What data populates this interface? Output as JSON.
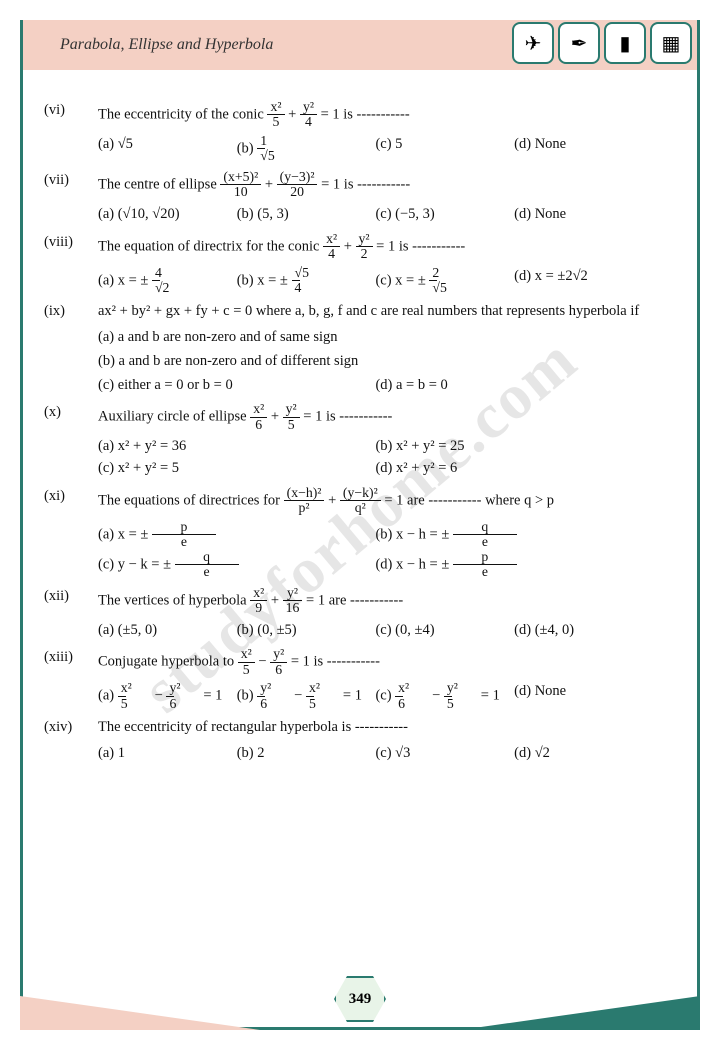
{
  "header": {
    "title": "Parabola, Ellipse and Hyperbola"
  },
  "watermark": "studyforhome.com",
  "page_number": "349",
  "colors": {
    "frame": "#2a7a6f",
    "header_bg": "#f4d0c4",
    "text": "#111111",
    "watermark": "#e6e6e6",
    "page_hex_bg": "#e8f4e8"
  },
  "icons": [
    {
      "name": "plane-icon",
      "glyph": "✈"
    },
    {
      "name": "compass-icon",
      "glyph": "⌀"
    },
    {
      "name": "ruler-icon",
      "glyph": "📏"
    },
    {
      "name": "calc-icon",
      "glyph": "🧮"
    }
  ],
  "q": {
    "vi": {
      "num": "(vi)",
      "stem_a": "The eccentricity of the conic ",
      "stem_b": " = 1 is -----------",
      "a": "(a) √5",
      "b": "(b) ",
      "c": "(c) 5",
      "d": "(d) None"
    },
    "vii": {
      "num": "(vii)",
      "stem_a": "The centre of ellipse ",
      "stem_b": " = 1 is -----------",
      "a": "(a) (√10, √20)",
      "b": "(b) (5, 3)",
      "c": "(c) (−5, 3)",
      "d": "(d) None"
    },
    "viii": {
      "num": "(viii)",
      "stem_a": "The equation of directrix for the conic ",
      "stem_b": " = 1 is -----------",
      "a": "(a)  x = ± ",
      "b": "(b) x = ± ",
      "c": "(c) x = ± ",
      "d": "(d) x = ±2√2"
    },
    "ix": {
      "num": "(ix)",
      "stem": "ax² + by² + gx + fy + c = 0 where a, b, g, f and c are real numbers that represents hyperbola if",
      "a": "(a)  a and b are non-zero and of same sign",
      "b": "(b)  a and b are non-zero and of different sign",
      "c": "(c)  either a = 0 or b = 0",
      "d": "(d) a = b = 0"
    },
    "x": {
      "num": "(x)",
      "stem_a": "Auxiliary circle of ellipse  ",
      "stem_b": " = 1 is -----------",
      "a": "(a) x² + y² = 36",
      "b": "(b) x² + y² = 25",
      "c": "(c) x² + y² = 5",
      "d": "(d) x² + y² = 6"
    },
    "xi": {
      "num": "(xi)",
      "stem_a": "The equations of directrices for  ",
      "stem_b": " = 1 are ----------- where q > p",
      "a": "(a) x = ± ",
      "b": "(b) x − h = ± ",
      "c": "(c) y − k = ± ",
      "d": "(d) x − h = ± "
    },
    "xii": {
      "num": "(xii)",
      "stem_a": "The vertices of hyperbola  ",
      "stem_b": " = 1 are -----------",
      "a": "(a) (±5, 0)",
      "b": "(b) (0, ±5)",
      "c": "(c) (0, ±4)",
      "d": "(d) (±4, 0)"
    },
    "xiii": {
      "num": "(xiii)",
      "stem_a": "Conjugate hyperbola to  ",
      "stem_b": " = 1 is -----------",
      "a": "(a) ",
      "b": "(b) ",
      "c": "(c) ",
      "d": "(d) None"
    },
    "xiv": {
      "num": "(xiv)",
      "stem": "The eccentricity of rectangular hyperbola is -----------",
      "a": "(a) 1",
      "b": "(b) 2",
      "c": "(c) √3",
      "d": "(d) √2"
    }
  }
}
